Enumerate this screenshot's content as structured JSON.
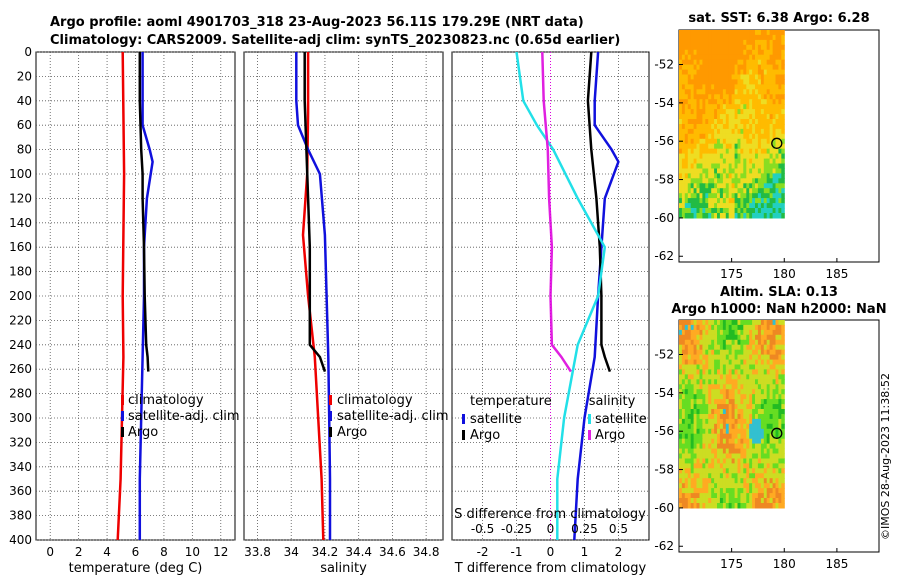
{
  "header": {
    "line1": "Argo profile: aoml 4901703_318 23-Aug-2023 56.11S 179.29E (NRT data)",
    "line2": "Climatology: CARS2009. Satellite-adj clim: synTS_20230823.nc (0.65d earlier)"
  },
  "footer": {
    "stamp": "©IMOS 28-Aug-2023 11:38:52"
  },
  "colors": {
    "climatology": "#ee0000",
    "satellite": "#1010dd",
    "argo": "#000000",
    "sat_salinity": "#22e0e8",
    "argo_salinity": "#e020e0"
  },
  "chart_data": [
    {
      "type": "line",
      "panel": "temperature",
      "xlabel": "temperature (deg C)",
      "xlim": [
        -1,
        13
      ],
      "xticks": [
        "0",
        "2",
        "4",
        "6",
        "8",
        "10",
        "12"
      ],
      "xtick_values": [
        0,
        2,
        4,
        6,
        8,
        10,
        12
      ],
      "ylim": [
        0,
        400
      ],
      "yticks": [
        "0",
        "20",
        "40",
        "60",
        "80",
        "100",
        "120",
        "140",
        "160",
        "180",
        "200",
        "220",
        "240",
        "260",
        "280",
        "300",
        "320",
        "340",
        "360",
        "380",
        "400"
      ],
      "legend": [
        "climatology",
        "satellite-adj. clim",
        "Argo"
      ],
      "series": [
        {
          "name": "climatology",
          "color": "#ee0000",
          "depth": [
            0,
            50,
            100,
            150,
            200,
            250,
            300,
            350,
            400
          ],
          "values": [
            5.1,
            5.15,
            5.2,
            5.15,
            5.1,
            5.15,
            5.05,
            4.95,
            4.75
          ]
        },
        {
          "name": "satellite-adj. clim",
          "color": "#1010dd",
          "depth": [
            0,
            60,
            80,
            90,
            120,
            160,
            200,
            250,
            300,
            350,
            400
          ],
          "values": [
            6.5,
            6.5,
            7.0,
            7.2,
            6.8,
            6.6,
            6.6,
            6.5,
            6.4,
            6.3,
            6.3
          ]
        },
        {
          "name": "Argo",
          "color": "#000000",
          "depth": [
            0,
            40,
            60,
            80,
            100,
            120,
            160,
            200,
            240,
            250,
            262
          ],
          "values": [
            6.3,
            6.3,
            6.35,
            6.4,
            6.5,
            6.5,
            6.6,
            6.65,
            6.75,
            6.85,
            6.9
          ]
        }
      ]
    },
    {
      "type": "line",
      "panel": "salinity",
      "xlabel": "salinity",
      "xlim": [
        33.72,
        34.9
      ],
      "xticks": [
        "33.8",
        "34",
        "34.2",
        "34.4",
        "34.6",
        "34.8"
      ],
      "xtick_values": [
        33.8,
        34.0,
        34.2,
        34.4,
        34.6,
        34.8
      ],
      "ylim": [
        0,
        400
      ],
      "legend": [
        "climatology",
        "satellite-adj. clim",
        "Argo"
      ],
      "series": [
        {
          "name": "climatology",
          "color": "#ee0000",
          "depth": [
            0,
            50,
            100,
            150,
            200,
            250,
            300,
            350,
            400
          ],
          "values": [
            34.1,
            34.1,
            34.095,
            34.07,
            34.1,
            34.14,
            34.16,
            34.18,
            34.19
          ]
        },
        {
          "name": "satellite-adj. clim",
          "color": "#1010dd",
          "depth": [
            0,
            40,
            60,
            80,
            100,
            150,
            200,
            250,
            300,
            350,
            400
          ],
          "values": [
            34.03,
            34.03,
            34.04,
            34.1,
            34.17,
            34.2,
            34.21,
            34.22,
            34.225,
            34.23,
            34.23
          ]
        },
        {
          "name": "Argo",
          "color": "#000000",
          "depth": [
            0,
            40,
            80,
            120,
            160,
            200,
            240,
            250,
            262
          ],
          "values": [
            34.08,
            34.08,
            34.09,
            34.1,
            34.11,
            34.11,
            34.11,
            34.17,
            34.2
          ]
        }
      ]
    },
    {
      "type": "line",
      "panel": "difference",
      "xlabel": "T difference from climatology",
      "xlim": [
        -2.9,
        2.9
      ],
      "xticks": [
        "-2",
        "-1",
        "0",
        "1",
        "2"
      ],
      "xtick_values": [
        -2,
        -1,
        0,
        1,
        2
      ],
      "x2label": "S difference from climatology",
      "x2ticks": [
        "-0.5",
        "-0.25",
        "0",
        "0.25",
        "0.5"
      ],
      "x2tick_values": [
        -0.5,
        -0.25,
        0,
        0.25,
        0.5
      ],
      "ylim": [
        0,
        400
      ],
      "legend_temperature_title": "temperature",
      "legend_salinity_title": "salinity",
      "legend_temperature": [
        "satellite",
        "Argo"
      ],
      "legend_salinity": [
        "satellite",
        "Argo"
      ],
      "series": [
        {
          "name": "temperature satellite",
          "color": "#1010dd",
          "depth": [
            0,
            40,
            60,
            80,
            90,
            120,
            160,
            200,
            250,
            300,
            350,
            400
          ],
          "values": [
            1.4,
            1.3,
            1.3,
            1.8,
            2.0,
            1.6,
            1.5,
            1.4,
            1.3,
            1.0,
            0.8,
            0.7
          ]
        },
        {
          "name": "temperature Argo",
          "color": "#000000",
          "depth": [
            0,
            40,
            80,
            120,
            160,
            200,
            240,
            250,
            262
          ],
          "values": [
            1.2,
            1.1,
            1.2,
            1.35,
            1.45,
            1.5,
            1.5,
            1.6,
            1.75
          ]
        },
        {
          "name": "salinity satellite",
          "color": "#22e0e8",
          "depth": [
            0,
            40,
            60,
            80,
            120,
            160,
            200,
            240,
            300,
            350,
            400
          ],
          "values": [
            -0.25,
            -0.2,
            -0.1,
            0.02,
            0.2,
            0.4,
            0.35,
            0.2,
            0.1,
            0.05,
            0.05
          ]
        },
        {
          "name": "salinity Argo",
          "color": "#e020e0",
          "depth": [
            0,
            40,
            80,
            120,
            160,
            200,
            240,
            250,
            262
          ],
          "values": [
            -0.06,
            -0.05,
            -0.02,
            -0.01,
            0.01,
            0.0,
            0.01,
            0.08,
            0.15
          ]
        }
      ]
    },
    {
      "type": "heatmap",
      "panel": "sst map",
      "title": "sat. SST: 6.38 Argo: 6.28",
      "xticks": [
        "175",
        "180",
        "185"
      ],
      "xtick_values": [
        175,
        180,
        185
      ],
      "xlim": [
        170,
        189
      ],
      "yticks": [
        "-52",
        "-54",
        "-56",
        "-58",
        "-60",
        "-62"
      ],
      "ytick_values": [
        -52,
        -54,
        -56,
        -58,
        -60,
        -62
      ],
      "ylim": [
        -62.3,
        -50.2
      ],
      "data_extent": {
        "lon": [
          170,
          180
        ],
        "lat": [
          -60,
          -50.2
        ]
      },
      "marker": {
        "lon": 179.29,
        "lat": -56.11
      }
    },
    {
      "type": "heatmap",
      "panel": "sla map",
      "title": "Altim. SLA: 0.13",
      "subtitle": "Argo h1000: NaN h2000: NaN",
      "xticks": [
        "175",
        "180",
        "185"
      ],
      "xtick_values": [
        175,
        180,
        185
      ],
      "xlim": [
        170,
        189
      ],
      "yticks": [
        "-52",
        "-54",
        "-56",
        "-58",
        "-60",
        "-62"
      ],
      "ytick_values": [
        -52,
        -54,
        -56,
        -58,
        -60,
        -62
      ],
      "ylim": [
        -62.3,
        -50.2
      ],
      "data_extent": {
        "lon": [
          170,
          180
        ],
        "lat": [
          -60,
          -50.2
        ]
      },
      "marker": {
        "lon": 179.29,
        "lat": -56.11
      }
    }
  ]
}
